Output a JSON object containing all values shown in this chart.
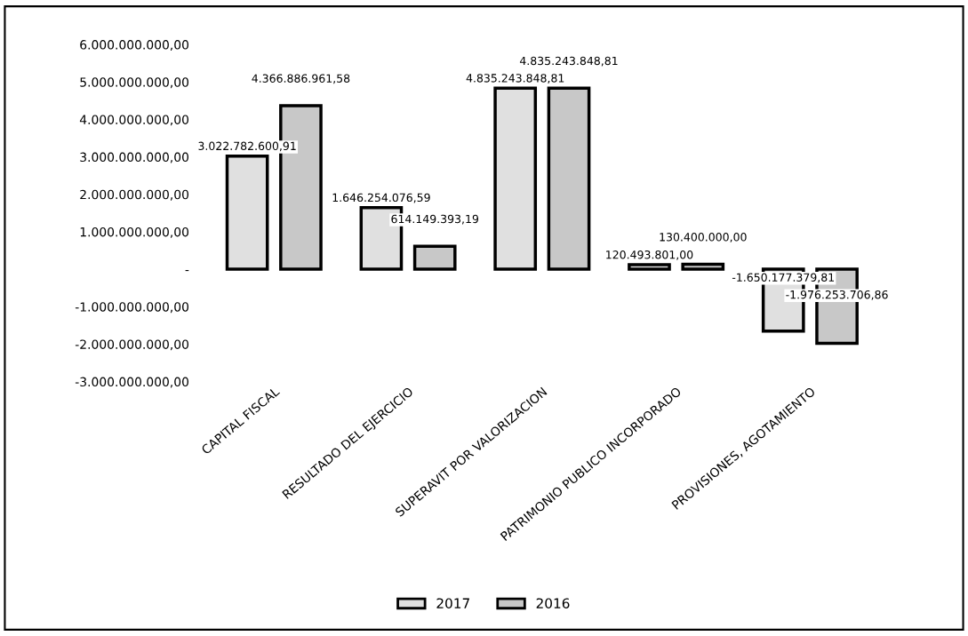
{
  "chart_data": {
    "type": "bar",
    "categories": [
      "CAPITAL FISCAL",
      "RESULTADO DEL EJERCICIO",
      "SUPERAVIT POR VALORIZACION",
      "PATRIMONIO PUBLICO INCORPORADO",
      "PROVISIONES, AGOTAMIENTO"
    ],
    "series": [
      {
        "name": "2017",
        "color": "#e0e0e0",
        "values": [
          3022782600.91,
          1646254076.59,
          4835243848.81,
          120493801,
          -1650177379.81
        ],
        "value_labels": [
          "3.022.782.600,91",
          "1.646.254.076,59",
          "4.835.243.848,81",
          "120.493.801,00",
          "-1.650.177.379,81"
        ]
      },
      {
        "name": "2016",
        "color": "#c8c8c8",
        "values": [
          4366886961.58,
          614149393.19,
          4835243848.81,
          130400000,
          -1976253706.86
        ],
        "value_labels": [
          "4.366.886.961,58",
          "614.149.393,19",
          "4.835.243.848,81",
          "130.400.000,00",
          "-1.976.253.706,86"
        ]
      }
    ],
    "ylim": [
      -3000000000,
      6000000000
    ],
    "yticks": [
      {
        "value": -3000000000,
        "label": "-3.000.000.000,00"
      },
      {
        "value": -2000000000,
        "label": "-2.000.000.000,00"
      },
      {
        "value": -1000000000,
        "label": "-1.000.000.000,00"
      },
      {
        "value": 0,
        "label": "-"
      },
      {
        "value": 1000000000,
        "label": "1.000.000.000,00"
      },
      {
        "value": 2000000000,
        "label": "2.000.000.000,00"
      },
      {
        "value": 3000000000,
        "label": "3.000.000.000,00"
      },
      {
        "value": 4000000000,
        "label": "4.000.000.000,00"
      },
      {
        "value": 5000000000,
        "label": "5.000.000.000,00"
      },
      {
        "value": 6000000000,
        "label": "6.000.000.000,00"
      }
    ],
    "grid": false,
    "legend": "bottom"
  }
}
